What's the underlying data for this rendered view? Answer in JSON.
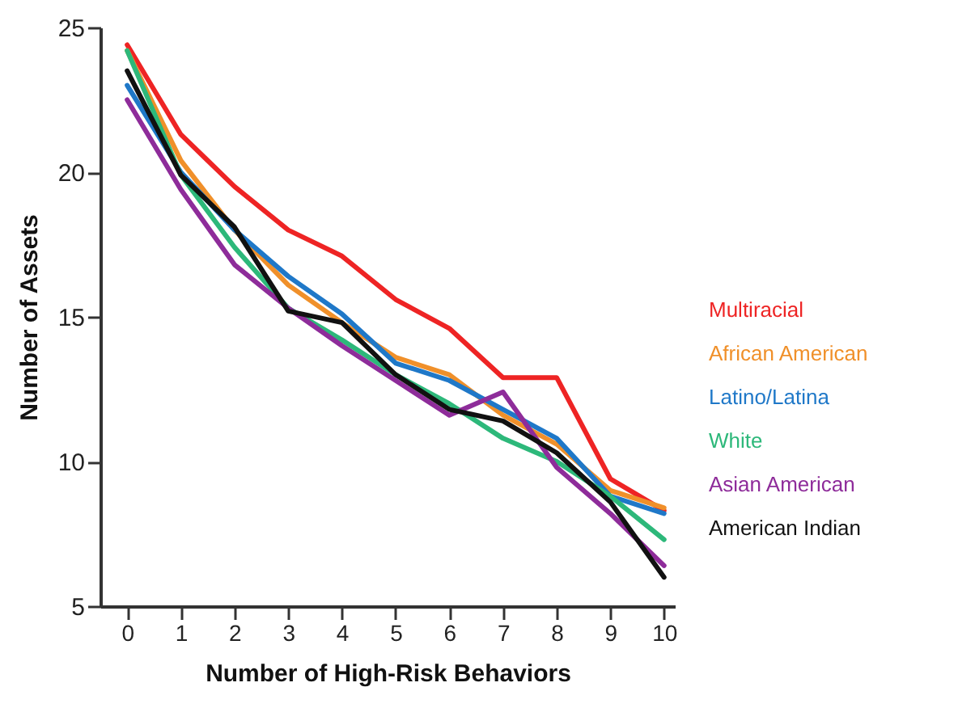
{
  "chart_data": {
    "type": "line",
    "xlabel": "Number of High-Risk Behaviors",
    "ylabel": "Number of Assets",
    "x": [
      0,
      1,
      2,
      3,
      4,
      5,
      6,
      7,
      8,
      9,
      10
    ],
    "xlim": [
      -0.5,
      10.2
    ],
    "xticks": [
      0,
      1,
      2,
      3,
      4,
      5,
      6,
      7,
      8,
      9,
      10
    ],
    "ylim": [
      5,
      25
    ],
    "yticks": [
      5,
      10,
      15,
      20,
      25
    ],
    "grid": false,
    "legend": "right",
    "marker": "none",
    "line_style": "solid",
    "series": [
      {
        "name": "Multiracial",
        "color": "#ee2424",
        "values": [
          24.4,
          21.3,
          19.5,
          18.0,
          17.1,
          15.6,
          14.6,
          12.9,
          12.9,
          9.4,
          8.3
        ]
      },
      {
        "name": "African American",
        "color": "#f0902a",
        "values": [
          24.2,
          20.4,
          18.0,
          16.1,
          14.8,
          13.6,
          13.0,
          11.6,
          10.6,
          9.0,
          8.4
        ]
      },
      {
        "name": "Latino/Latina",
        "color": "#1f78c8",
        "values": [
          23.0,
          20.0,
          18.0,
          16.4,
          15.1,
          13.4,
          12.8,
          11.8,
          10.8,
          8.8,
          8.2
        ]
      },
      {
        "name": "White",
        "color": "#2db87a",
        "values": [
          24.2,
          19.9,
          17.4,
          15.3,
          14.2,
          13.0,
          12.0,
          10.8,
          10.0,
          8.8,
          7.3
        ]
      },
      {
        "name": "Asian American",
        "color": "#8e2c9a",
        "values": [
          22.5,
          19.4,
          16.8,
          15.3,
          14.0,
          12.8,
          11.6,
          12.4,
          9.8,
          8.2,
          6.4
        ]
      },
      {
        "name": "American Indian",
        "color": "#111111",
        "values": [
          23.5,
          19.9,
          18.1,
          15.2,
          14.8,
          13.0,
          11.8,
          11.4,
          10.3,
          8.6,
          6.0
        ]
      }
    ]
  }
}
